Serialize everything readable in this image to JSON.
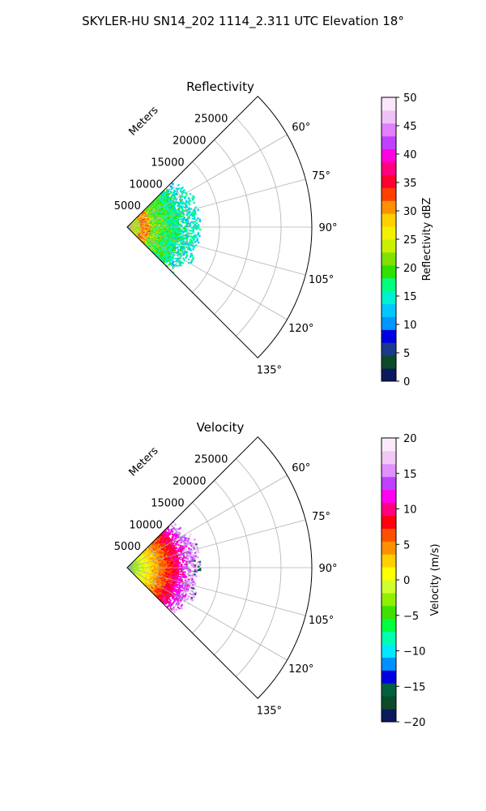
{
  "suptitle": "SKYLER-HU  SN14_202  1114_2.311 UTC Elevation 18°",
  "chart_data": [
    {
      "type": "heatmap",
      "subtype": "polar-sector",
      "title": "Reflectivity",
      "radial_label": "Meters",
      "radial_ticks": [
        5000,
        10000,
        15000,
        20000,
        25000
      ],
      "radial_tick_labels": [
        "5000",
        "10000",
        "15000",
        "20000",
        "25000"
      ],
      "radial_range": [
        0,
        30000
      ],
      "angle_range_deg": [
        45,
        135
      ],
      "angle_ticks": [
        "60°",
        "75°",
        "90°",
        "105°",
        "120°",
        "135°"
      ],
      "data_extent_m": 12000,
      "colorbar": {
        "label": "Reflectivity dBZ",
        "min": 0,
        "max": 50,
        "ticks": [
          0,
          5,
          10,
          15,
          20,
          25,
          30,
          35,
          40,
          45,
          50
        ],
        "tick_labels": [
          "0",
          "5",
          "10",
          "15",
          "20",
          "25",
          "30",
          "35",
          "40",
          "45",
          "50"
        ]
      }
    },
    {
      "type": "heatmap",
      "subtype": "polar-sector",
      "title": "Velocity",
      "radial_label": "Meters",
      "radial_ticks": [
        5000,
        10000,
        15000,
        20000,
        25000
      ],
      "radial_tick_labels": [
        "5000",
        "10000",
        "15000",
        "20000",
        "25000"
      ],
      "radial_range": [
        0,
        30000
      ],
      "angle_range_deg": [
        45,
        135
      ],
      "angle_ticks": [
        "60°",
        "75°",
        "90°",
        "105°",
        "120°",
        "135°"
      ],
      "data_extent_m": 12000,
      "colorbar": {
        "label": "Velocity (m/s)",
        "min": -20,
        "max": 20,
        "ticks": [
          -20,
          -15,
          -10,
          -5,
          0,
          5,
          10,
          15,
          20
        ],
        "tick_labels": [
          "−20",
          "−15",
          "−10",
          "−5",
          "0",
          "5",
          "10",
          "15",
          "20"
        ]
      }
    }
  ],
  "colors": {
    "reflectivity_scale": [
      "#0a1a5c",
      "#0d4a2a",
      "#1a3a8a",
      "#0000e0",
      "#0096ff",
      "#00c8ff",
      "#00f0d0",
      "#00ff80",
      "#30e000",
      "#80e000",
      "#c8f000",
      "#f0f000",
      "#ffd000",
      "#ff9000",
      "#ff4000",
      "#ff0030",
      "#ff0080",
      "#ff00e0",
      "#c040ff",
      "#e080ff",
      "#f0c0f8",
      "#fbe6fb"
    ],
    "velocity_scale": [
      "#0a1a5c",
      "#0d4a2a",
      "#006040",
      "#0000e0",
      "#0090ff",
      "#00e8ff",
      "#00ffb0",
      "#00ff40",
      "#40e000",
      "#90f000",
      "#d0ff30",
      "#ffff00",
      "#ffd000",
      "#ff9000",
      "#ff5000",
      "#ff0010",
      "#ff0080",
      "#ff00f0",
      "#c040ff",
      "#e090ff",
      "#f2c8f4",
      "#fbeafb"
    ]
  }
}
